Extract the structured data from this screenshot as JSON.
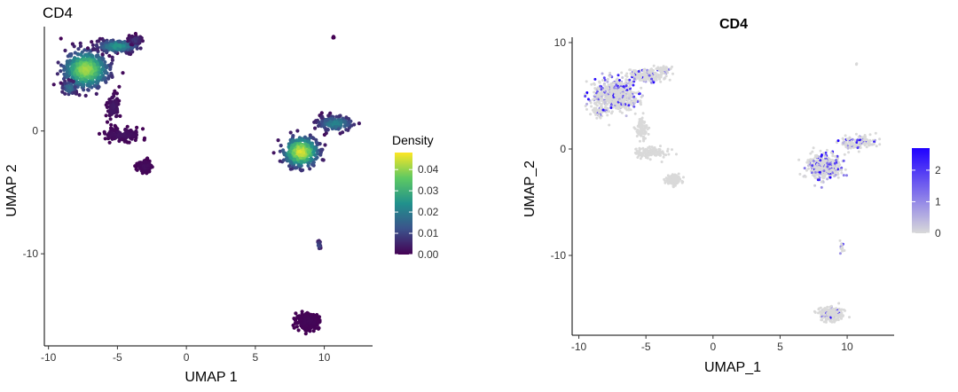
{
  "chart_data": [
    {
      "type": "scatter",
      "panel": "left",
      "title": "CD4",
      "xlabel": "UMAP 1",
      "ylabel": "UMAP 2",
      "xlim": [
        -10.3,
        13.5
      ],
      "ylim": [
        -17.5,
        8.5
      ],
      "xticks": [
        -10,
        -5,
        0,
        5,
        10
      ],
      "yticks": [
        -10,
        0
      ],
      "color_by": "density",
      "legend": {
        "title": "Density",
        "placement": "right",
        "ticks": [
          "0.04",
          "0.03",
          "0.02",
          "0.01",
          "0.00"
        ],
        "tick_values": [
          0.04,
          0.03,
          0.02,
          0.01,
          0.0
        ],
        "range": [
          0,
          0.048
        ],
        "colors": [
          "#440154",
          "#3b528b",
          "#21918c",
          "#5ec962",
          "#fde725"
        ]
      },
      "clusters": [
        {
          "name": "top-left main",
          "center": [
            -7.3,
            5.0
          ],
          "spread": [
            1.4,
            1.3
          ],
          "points": 600,
          "density": 0.042
        },
        {
          "name": "top-left upper arm",
          "center": [
            -5.0,
            6.9
          ],
          "spread": [
            1.3,
            0.45
          ],
          "points": 220,
          "density": 0.026
        },
        {
          "name": "top-left right tip",
          "center": [
            -3.7,
            7.4
          ],
          "spread": [
            0.5,
            0.3
          ],
          "points": 60,
          "density": 0.008
        },
        {
          "name": "top-left lower spur",
          "center": [
            -8.5,
            3.5
          ],
          "spread": [
            0.5,
            0.5
          ],
          "points": 60,
          "density": 0.018
        },
        {
          "name": "left bridge",
          "center": [
            -5.3,
            1.9
          ],
          "spread": [
            0.4,
            1.0
          ],
          "points": 90,
          "density": 0.004
        },
        {
          "name": "left middle band",
          "center": [
            -4.7,
            -0.3
          ],
          "spread": [
            1.2,
            0.45
          ],
          "points": 130,
          "density": 0.003
        },
        {
          "name": "left lower blob",
          "center": [
            -3.0,
            -2.9
          ],
          "spread": [
            0.5,
            0.45
          ],
          "points": 110,
          "density": 0.002
        },
        {
          "name": "right main",
          "center": [
            8.3,
            -1.7
          ],
          "spread": [
            1.1,
            1.05
          ],
          "points": 420,
          "density": 0.046
        },
        {
          "name": "right arm",
          "center": [
            10.8,
            0.6
          ],
          "spread": [
            1.2,
            0.55
          ],
          "points": 150,
          "density": 0.022
        },
        {
          "name": "right small",
          "center": [
            9.6,
            -9.3
          ],
          "spread": [
            0.12,
            0.35
          ],
          "points": 18,
          "density": 0.012
        },
        {
          "name": "bottom blob",
          "center": [
            8.8,
            -15.5
          ],
          "spread": [
            0.75,
            0.55
          ],
          "points": 240,
          "density": 0.001
        },
        {
          "name": "top outlier",
          "center": [
            10.7,
            7.6
          ],
          "spread": [
            0.05,
            0.05
          ],
          "points": 3,
          "density": 0.0
        }
      ]
    },
    {
      "type": "scatter",
      "panel": "right",
      "title": "CD4",
      "xlabel": "UMAP_1",
      "ylabel": "UMAP_2",
      "xlim": [
        -10.5,
        13.5
      ],
      "ylim": [
        -17.5,
        10.5
      ],
      "xticks": [
        -10,
        -5,
        0,
        5,
        10
      ],
      "yticks": [
        10,
        0,
        -10
      ],
      "color_by": "expression",
      "legend": {
        "title": "",
        "placement": "right",
        "ticks": [
          "2",
          "1",
          "0"
        ],
        "tick_values": [
          2,
          1,
          0
        ],
        "range": [
          0,
          2.7
        ],
        "colors": [
          "#d9d9d9",
          "#1f00ff"
        ]
      },
      "clusters": [
        {
          "name": "top-left main",
          "center": [
            -7.3,
            5.0
          ],
          "spread": [
            1.4,
            1.3
          ],
          "points": 600,
          "expression": 0.6
        },
        {
          "name": "top-left upper arm",
          "center": [
            -5.0,
            6.9
          ],
          "spread": [
            1.3,
            0.45
          ],
          "points": 220,
          "expression": 0.4
        },
        {
          "name": "top-left right tip",
          "center": [
            -3.7,
            7.4
          ],
          "spread": [
            0.5,
            0.3
          ],
          "points": 60,
          "expression": 0.1
        },
        {
          "name": "top-left lower spur",
          "center": [
            -8.5,
            3.5
          ],
          "spread": [
            0.5,
            0.5
          ],
          "points": 60,
          "expression": 0.3
        },
        {
          "name": "left bridge",
          "center": [
            -5.3,
            1.9
          ],
          "spread": [
            0.4,
            1.0
          ],
          "points": 90,
          "expression": 0.0
        },
        {
          "name": "left middle band",
          "center": [
            -4.7,
            -0.3
          ],
          "spread": [
            1.2,
            0.45
          ],
          "points": 130,
          "expression": 0.0
        },
        {
          "name": "left lower blob",
          "center": [
            -3.0,
            -2.9
          ],
          "spread": [
            0.5,
            0.45
          ],
          "points": 110,
          "expression": 0.0
        },
        {
          "name": "right main",
          "center": [
            8.3,
            -1.7
          ],
          "spread": [
            1.1,
            1.05
          ],
          "points": 420,
          "expression": 0.8
        },
        {
          "name": "right arm",
          "center": [
            10.8,
            0.6
          ],
          "spread": [
            1.2,
            0.55
          ],
          "points": 150,
          "expression": 0.6
        },
        {
          "name": "right small",
          "center": [
            9.6,
            -9.3
          ],
          "spread": [
            0.12,
            0.35
          ],
          "points": 18,
          "expression": 0.2
        },
        {
          "name": "bottom blob",
          "center": [
            8.8,
            -15.5
          ],
          "spread": [
            0.75,
            0.55
          ],
          "points": 240,
          "expression": 0.2
        },
        {
          "name": "top outlier",
          "center": [
            10.7,
            8.0
          ],
          "spread": [
            0.05,
            0.05
          ],
          "points": 3,
          "expression": 0.0
        }
      ]
    }
  ]
}
